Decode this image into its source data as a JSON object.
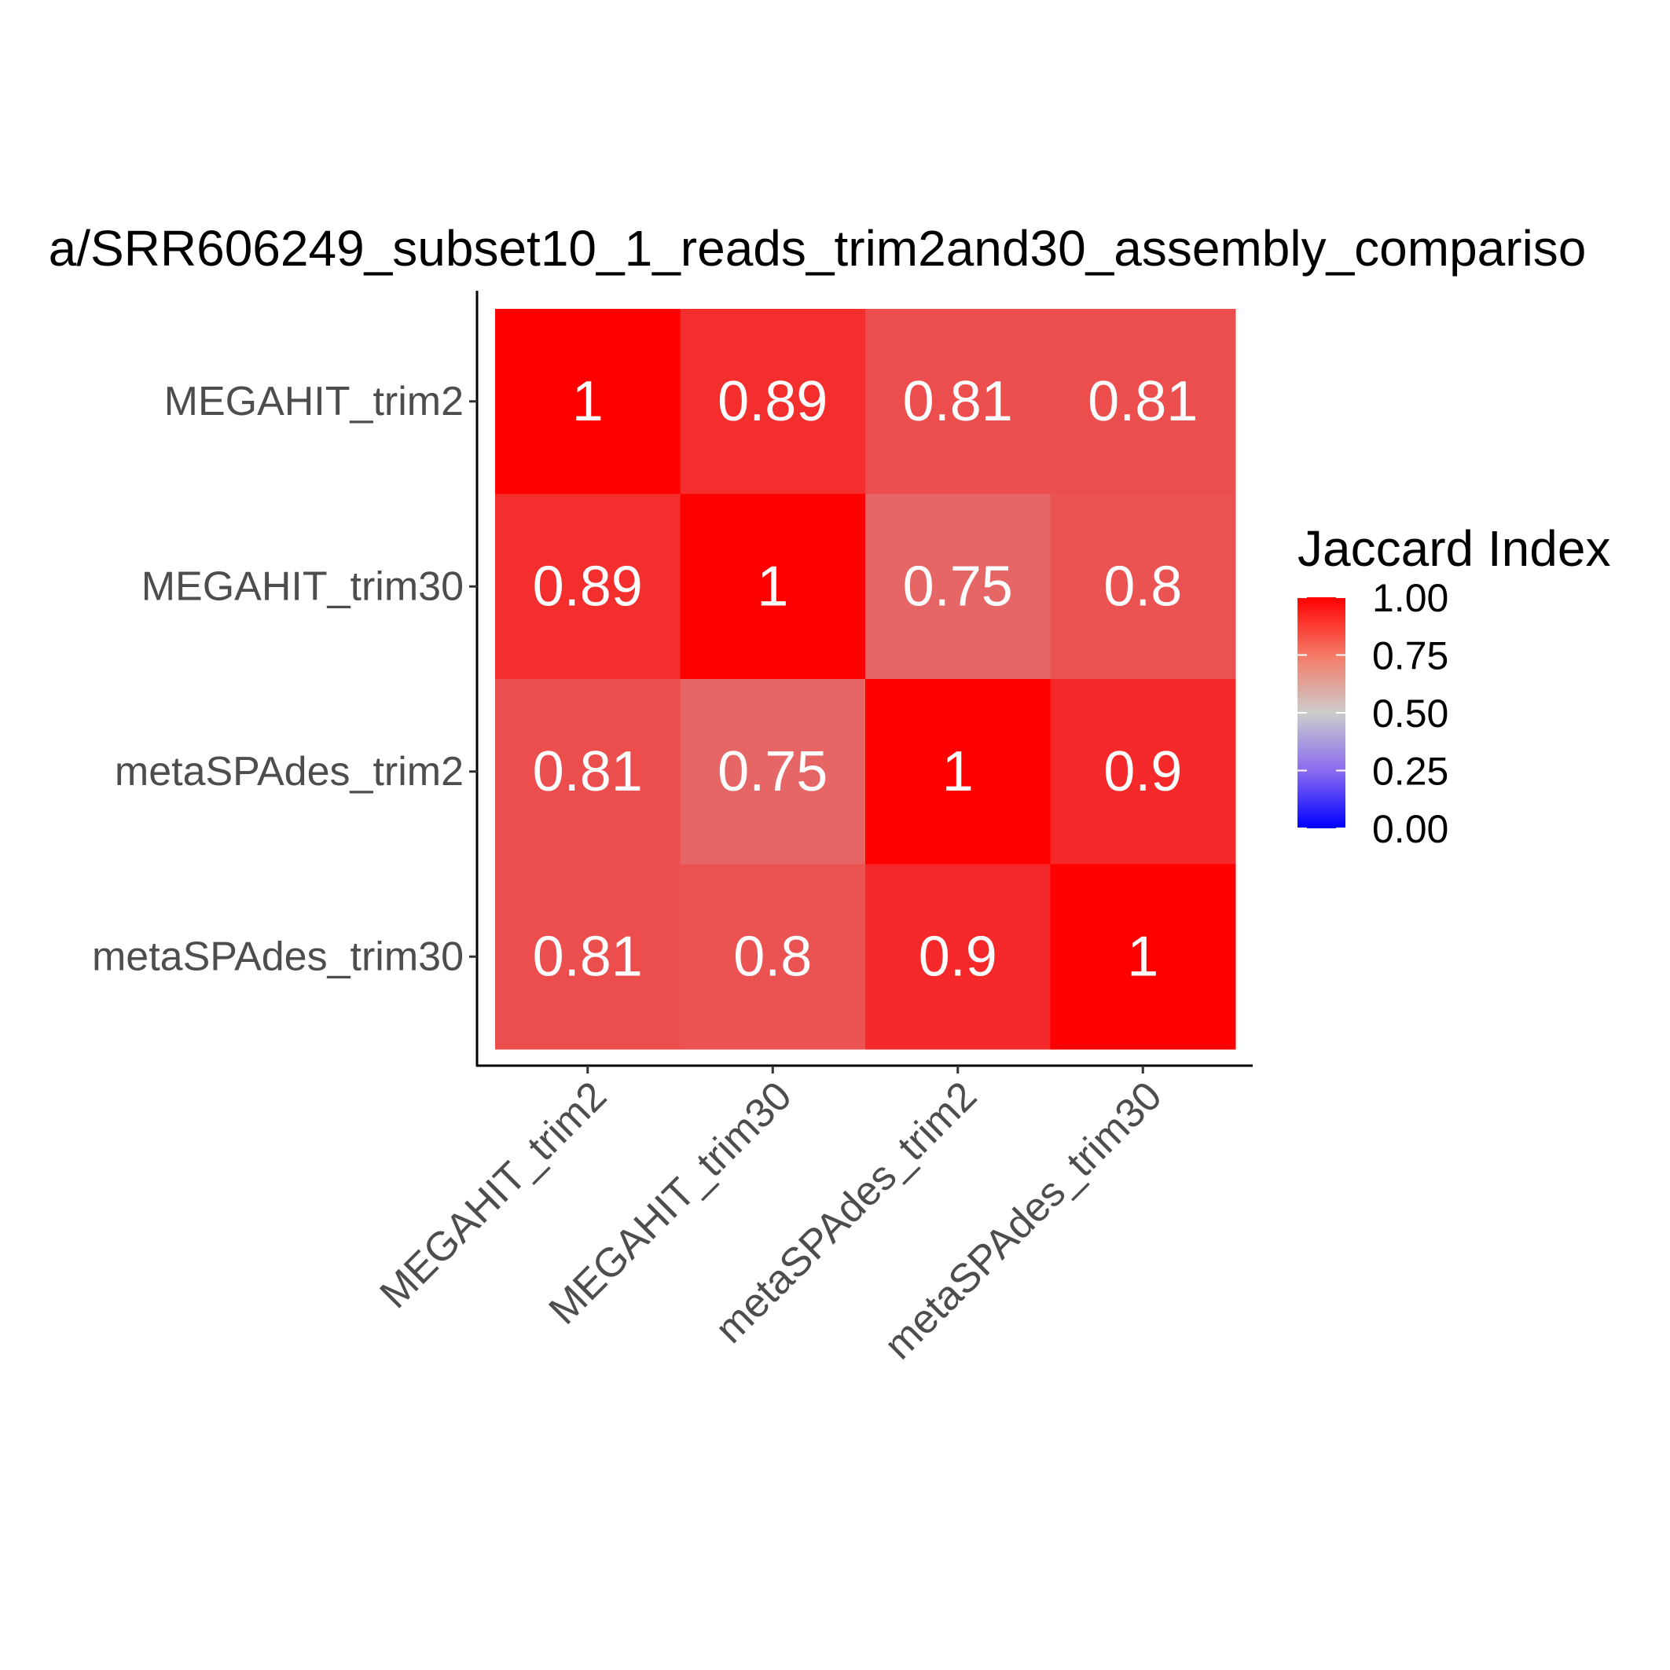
{
  "chart_data": {
    "type": "heatmap",
    "title": "a/SRR606249_subset10_1_reads_trim2and30_assembly_compariso",
    "x_categories": [
      "MEGAHIT_trim2",
      "MEGAHIT_trim30",
      "metaSPAdes_trim2",
      "metaSPAdes_trim30"
    ],
    "y_categories": [
      "MEGAHIT_trim2",
      "MEGAHIT_trim30",
      "metaSPAdes_trim2",
      "metaSPAdes_trim30"
    ],
    "values": [
      [
        1,
        0.89,
        0.81,
        0.81
      ],
      [
        0.89,
        1,
        0.75,
        0.8
      ],
      [
        0.81,
        0.75,
        1,
        0.9
      ],
      [
        0.81,
        0.8,
        0.9,
        1
      ]
    ],
    "cell_labels": [
      [
        "1",
        "0.89",
        "0.81",
        "0.81"
      ],
      [
        "0.89",
        "1",
        "0.75",
        "0.8"
      ],
      [
        "0.81",
        "0.75",
        "1",
        "0.9"
      ],
      [
        "0.81",
        "0.8",
        "0.9",
        "1"
      ]
    ],
    "legend": {
      "title": "Jaccard Index",
      "position": "right",
      "range": [
        0,
        1
      ],
      "ticks": [
        "1.00",
        "0.75",
        "0.50",
        "0.25",
        "0.00"
      ],
      "tick_values": [
        1.0,
        0.75,
        0.5,
        0.25,
        0.0
      ]
    },
    "colors": {
      "low": "#0000ff",
      "mid": "#cccccc",
      "high": "#ff0000",
      "midpoint": 0.5
    },
    "grid": false
  }
}
